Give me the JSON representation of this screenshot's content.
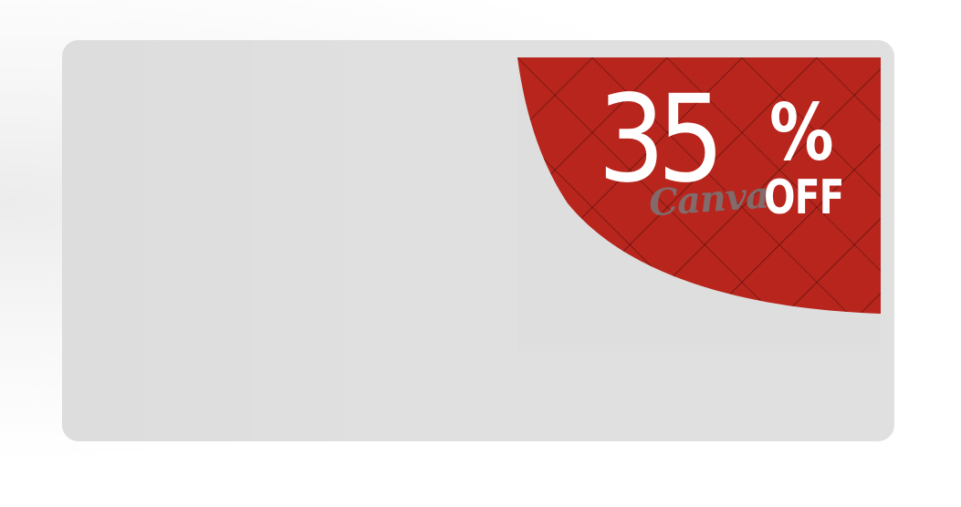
{
  "promo": {
    "discount_number": "35",
    "percent_sign": "%",
    "off_label": "OFF",
    "watermark": "Canva"
  },
  "colors": {
    "card_background": "#e0e0e0",
    "sticker_red": "#b8251c",
    "pattern_line": "#2a0a08",
    "text": "#ffffff"
  }
}
